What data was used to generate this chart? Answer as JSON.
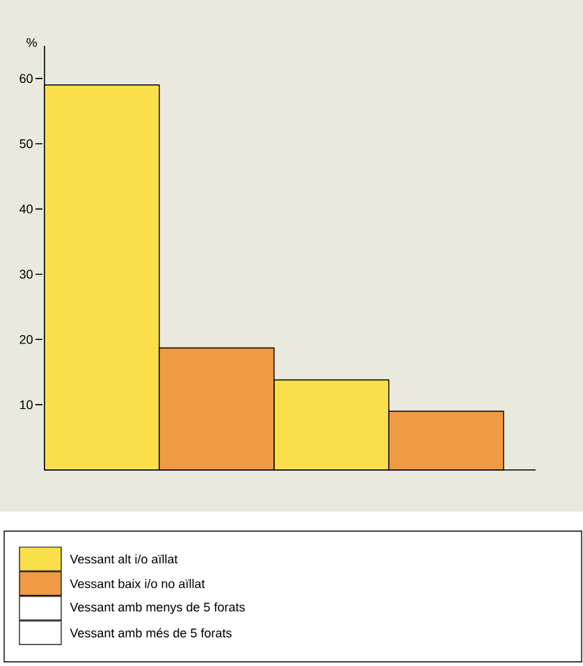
{
  "chart_data": {
    "type": "bar",
    "ylabel": "%",
    "categories": [
      null,
      null,
      null,
      null
    ],
    "series": [
      {
        "name": "Vessant alt  i/o aïllat",
        "color": "#f9e04b",
        "values": [
          59,
          null,
          13.8,
          null
        ]
      },
      {
        "name": "Vessant baix i/o no aïllat",
        "color": "#ef9a45",
        "values": [
          null,
          18.7,
          null,
          9
        ]
      }
    ],
    "ylim": [
      0,
      65
    ],
    "yticks": [
      10,
      20,
      30,
      40,
      50,
      60
    ],
    "legend": "bottom",
    "annotations": [
      "Vessant amb menys de 5 forats",
      "Vessant amb més de 5 forats"
    ]
  }
}
